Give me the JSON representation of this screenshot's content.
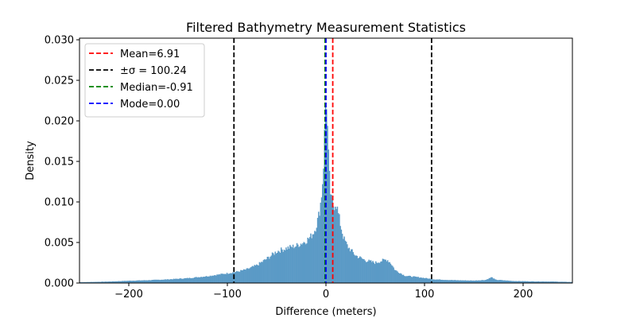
{
  "chart_data": {
    "type": "bar",
    "title": "Filtered Bathymetry Measurement Statistics",
    "xlabel": "Difference (meters)",
    "ylabel": "Density",
    "xlim": [
      -250,
      250
    ],
    "ylim": [
      0,
      0.0302
    ],
    "x_ticks": [
      -200,
      -100,
      0,
      100,
      200
    ],
    "x_tick_labels": [
      "−200",
      "−100",
      "0",
      "100",
      "200"
    ],
    "y_ticks": [
      0.0,
      0.005,
      0.01,
      0.015,
      0.02,
      0.025,
      0.03
    ],
    "y_tick_labels": [
      "0.000",
      "0.005",
      "0.010",
      "0.015",
      "0.020",
      "0.025",
      "0.030"
    ],
    "grid": false,
    "legend_position": "top-left",
    "bar_color": "#5b9ac6",
    "histogram": {
      "bin_width": 1,
      "profile_points": [
        [
          -250,
          0.0001
        ],
        [
          -240,
          0.00012
        ],
        [
          -230,
          0.00015
        ],
        [
          -220,
          0.00018
        ],
        [
          -200,
          0.00028
        ],
        [
          -180,
          0.00035
        ],
        [
          -160,
          0.00045
        ],
        [
          -140,
          0.0006
        ],
        [
          -120,
          0.00085
        ],
        [
          -100,
          0.0012
        ],
        [
          -90,
          0.0014
        ],
        [
          -80,
          0.0017
        ],
        [
          -70,
          0.0022
        ],
        [
          -60,
          0.003
        ],
        [
          -50,
          0.0039
        ],
        [
          -40,
          0.0043
        ],
        [
          -30,
          0.0046
        ],
        [
          -25,
          0.0049
        ],
        [
          -20,
          0.0052
        ],
        [
          -15,
          0.0058
        ],
        [
          -12,
          0.0064
        ],
        [
          -10,
          0.007
        ],
        [
          -8,
          0.008
        ],
        [
          -6,
          0.0093
        ],
        [
          -4,
          0.0115
        ],
        [
          -3,
          0.0135
        ],
        [
          -2,
          0.016
        ],
        [
          -1,
          0.0205
        ],
        [
          0,
          0.0238
        ],
        [
          1,
          0.021
        ],
        [
          2,
          0.017
        ],
        [
          3,
          0.014
        ],
        [
          4,
          0.0118
        ],
        [
          5,
          0.0105
        ],
        [
          6,
          0.0098
        ],
        [
          8,
          0.0095
        ],
        [
          10,
          0.01
        ],
        [
          12,
          0.0088
        ],
        [
          15,
          0.007
        ],
        [
          18,
          0.0055
        ],
        [
          22,
          0.0045
        ],
        [
          30,
          0.0034
        ],
        [
          40,
          0.0028
        ],
        [
          50,
          0.0025
        ],
        [
          58,
          0.0028
        ],
        [
          62,
          0.0029
        ],
        [
          66,
          0.0024
        ],
        [
          70,
          0.0016
        ],
        [
          80,
          0.0009
        ],
        [
          95,
          0.0007
        ],
        [
          110,
          0.00045
        ],
        [
          130,
          0.00035
        ],
        [
          150,
          0.0003
        ],
        [
          162,
          0.00038
        ],
        [
          168,
          0.00072
        ],
        [
          172,
          0.0004
        ],
        [
          190,
          0.00025
        ],
        [
          210,
          0.0002
        ],
        [
          230,
          0.00018
        ],
        [
          250,
          0.00012
        ]
      ]
    },
    "vlines": [
      {
        "x": 6.91,
        "color": "#ff0000",
        "style": "dashed"
      },
      {
        "x": -93.33,
        "color": "#000000",
        "style": "dashed"
      },
      {
        "x": 107.15,
        "color": "#000000",
        "style": "dashed"
      },
      {
        "x": -0.91,
        "color": "#008000",
        "style": "dashed"
      },
      {
        "x": 0.0,
        "color": "#0000ff",
        "style": "dashed"
      }
    ],
    "legend": [
      {
        "label": "Mean=6.91",
        "color": "#ff0000"
      },
      {
        "label": "±σ = 100.24",
        "color": "#000000"
      },
      {
        "label": "Median=-0.91",
        "color": "#008000"
      },
      {
        "label": "Mode=0.00",
        "color": "#0000ff"
      }
    ]
  }
}
